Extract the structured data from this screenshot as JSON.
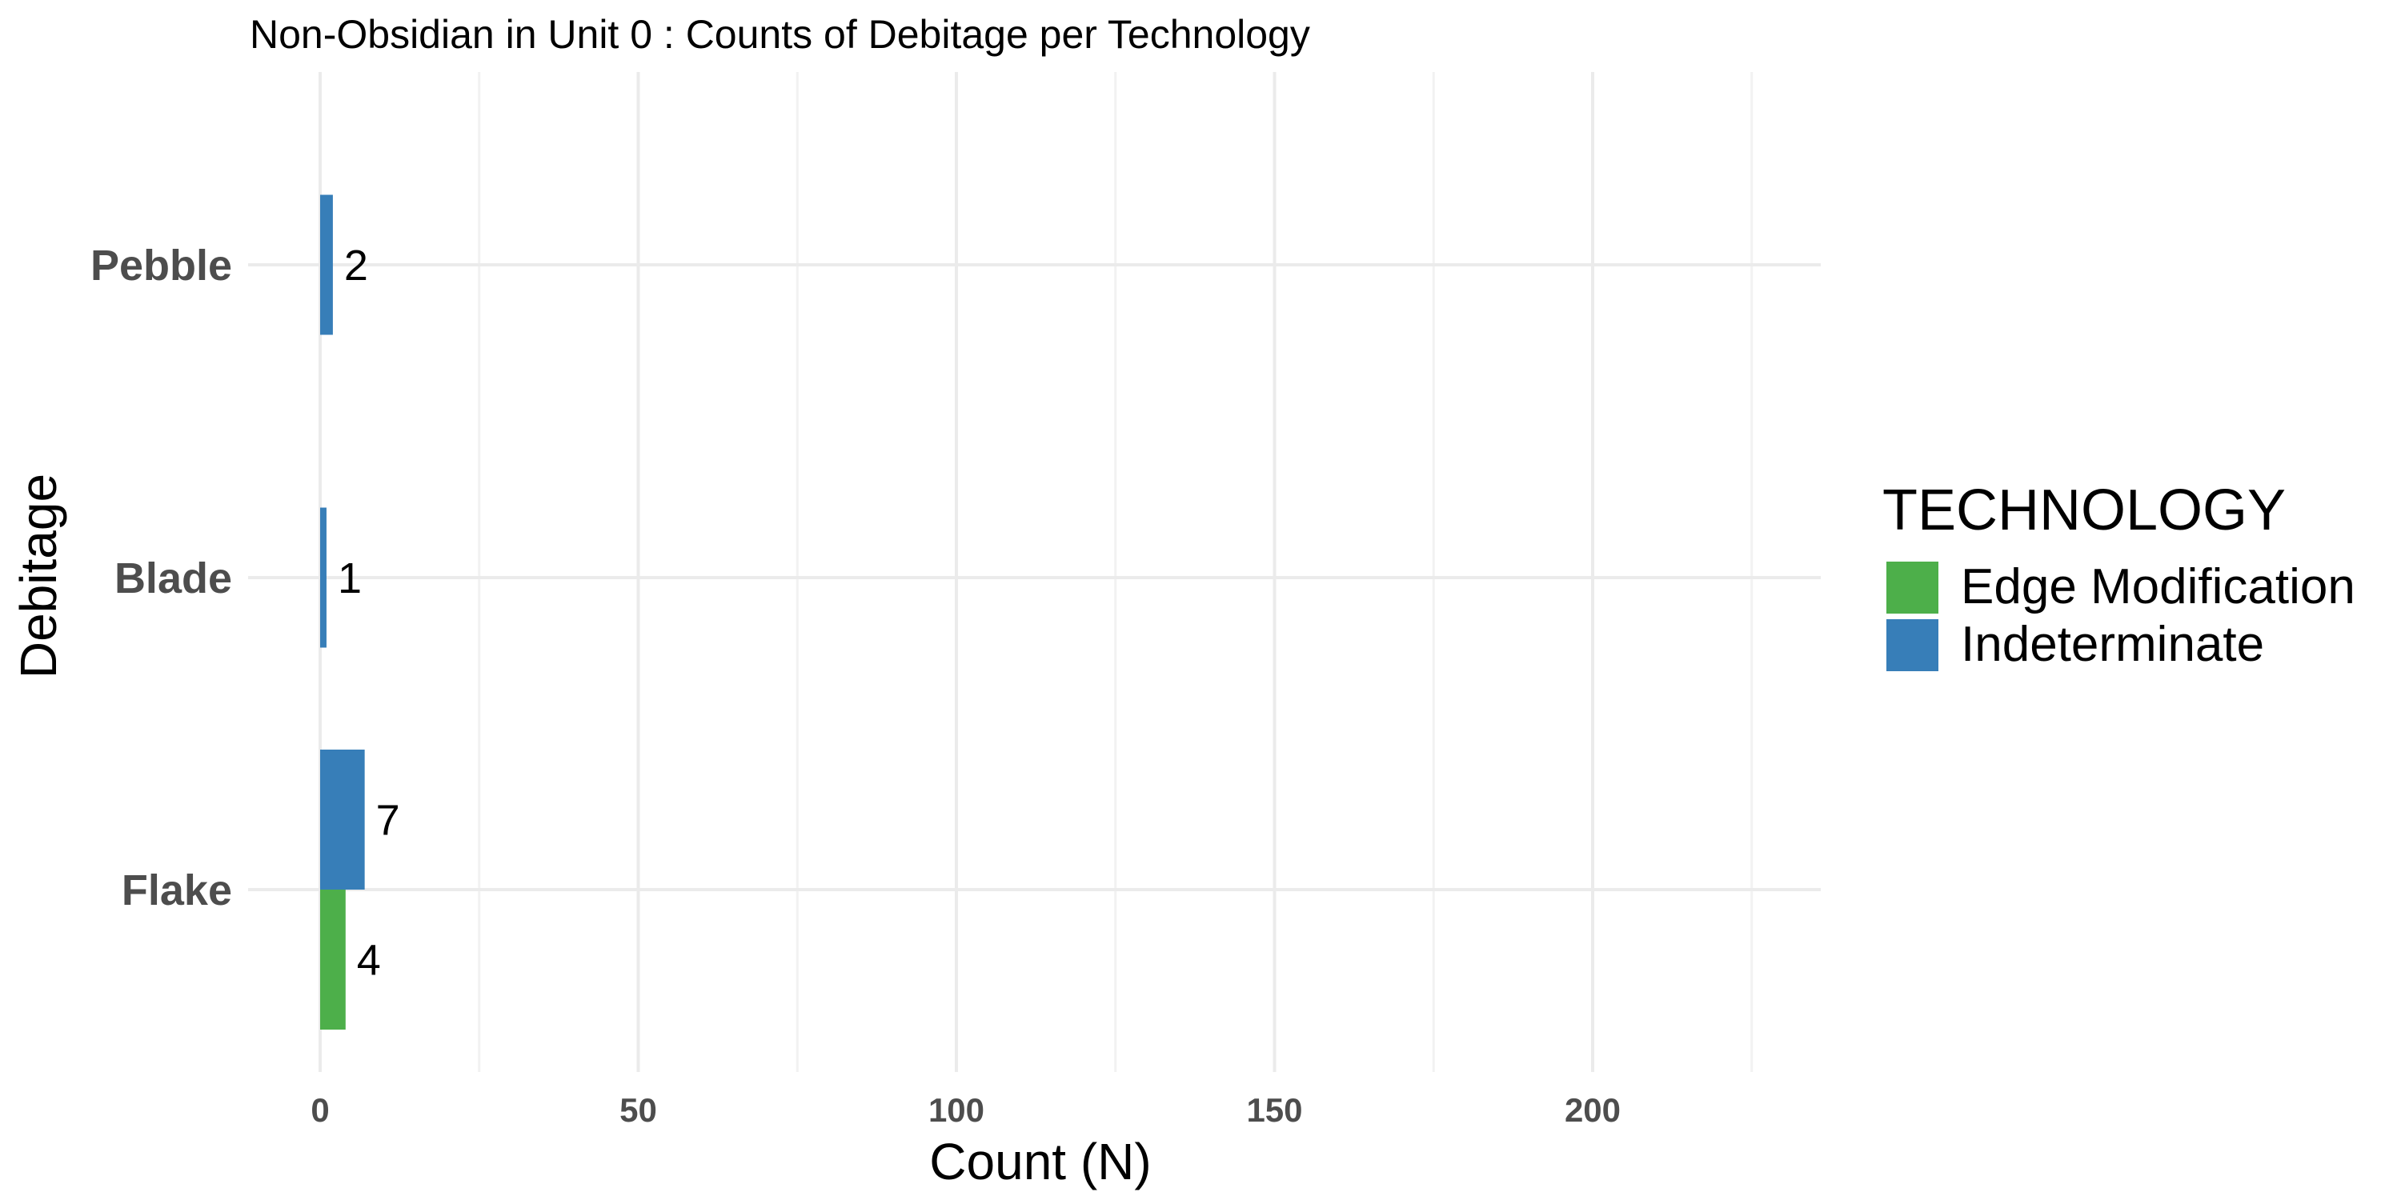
{
  "chart_data": {
    "type": "bar",
    "orientation": "horizontal",
    "title": "Non-Obsidian in Unit 0 : Counts of Debitage per Technology",
    "xlabel": "Count (N)",
    "ylabel": "Debitage",
    "xlim": [
      0,
      235
    ],
    "x_ticks": [
      0,
      50,
      100,
      150,
      200
    ],
    "categories": [
      "Flake",
      "Blade",
      "Pebble"
    ],
    "grid": true,
    "legend": {
      "title": "TECHNOLOGY",
      "placement": "right"
    },
    "series": [
      {
        "name": "Edge Modification",
        "color": "#4daf4a",
        "values": [
          4,
          null,
          null
        ]
      },
      {
        "name": "Indeterminate",
        "color": "#377eb8",
        "values": [
          7,
          1,
          2
        ]
      }
    ]
  }
}
